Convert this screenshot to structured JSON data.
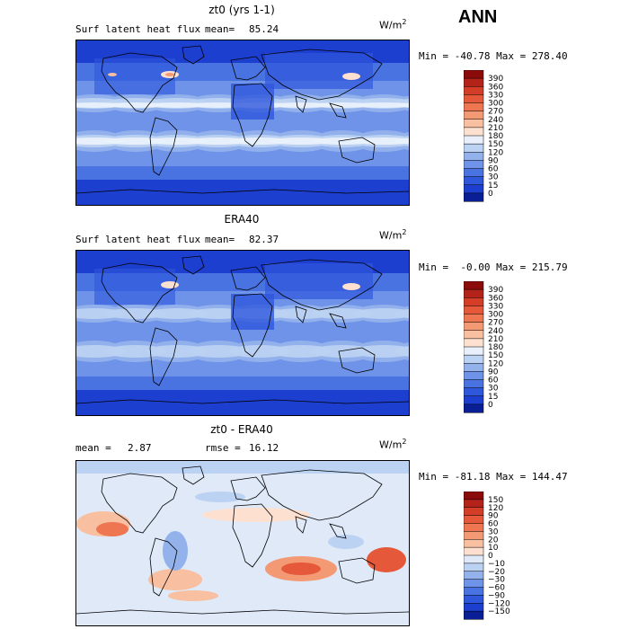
{
  "season": "ANN",
  "units_prefix": "W/m",
  "units_exp": "2",
  "panels": [
    {
      "title": "zt0 (yrs 1-1)",
      "left_label": "Surf latent heat flux",
      "stat1_label": "mean=",
      "stat1_value": "85.24",
      "minmax": "Min = -40.78 Max = 278.40",
      "colorbar_levels": [
        "390",
        "360",
        "330",
        "300",
        "270",
        "240",
        "210",
        "180",
        "150",
        "120",
        "90",
        "60",
        "30",
        "15",
        "0"
      ],
      "colorbar_colors": [
        "#8b0a0a",
        "#b3231a",
        "#d43d27",
        "#e5583a",
        "#ee7650",
        "#f39a75",
        "#f8bfa1",
        "#fde0cf",
        "#e9f0fb",
        "#bcd2f2",
        "#93b2ec",
        "#6f93e8",
        "#4a73e2",
        "#2f57dc",
        "#1d3fcf",
        "#0a1f96"
      ],
      "field_style": "model"
    },
    {
      "title": "ERA40",
      "left_label": "Surf latent heat flux",
      "stat1_label": "mean=",
      "stat1_value": "82.37",
      "minmax": "Min =  -0.00 Max = 215.79",
      "colorbar_levels": [
        "390",
        "360",
        "330",
        "300",
        "270",
        "240",
        "210",
        "180",
        "150",
        "120",
        "90",
        "60",
        "30",
        "15",
        "0"
      ],
      "colorbar_colors": [
        "#8b0a0a",
        "#b3231a",
        "#d43d27",
        "#e5583a",
        "#ee7650",
        "#f39a75",
        "#f8bfa1",
        "#fde0cf",
        "#e9f0fb",
        "#bcd2f2",
        "#93b2ec",
        "#6f93e8",
        "#4a73e2",
        "#2f57dc",
        "#1d3fcf",
        "#0a1f96"
      ],
      "field_style": "obs"
    },
    {
      "title": "zt0 - ERA40",
      "left_label": "mean =",
      "left_value": "2.87",
      "stat1_label": "rmse =",
      "stat1_value": "16.12",
      "minmax": "Min = -81.18 Max = 144.47",
      "colorbar_levels": [
        "150",
        "120",
        "90",
        "60",
        "30",
        "20",
        "10",
        "0",
        "−10",
        "−20",
        "−30",
        "−60",
        "−90",
        "−120",
        "−150"
      ],
      "colorbar_colors": [
        "#8b0a0a",
        "#b3231a",
        "#d43d27",
        "#e5583a",
        "#ee7650",
        "#f39a75",
        "#f8bfa1",
        "#fde0cf",
        "#dfe9f8",
        "#bcd2f2",
        "#93b2ec",
        "#6f93e8",
        "#4a73e2",
        "#2f57dc",
        "#1d3fcf",
        "#0a1f96"
      ],
      "field_style": "diff"
    }
  ]
}
